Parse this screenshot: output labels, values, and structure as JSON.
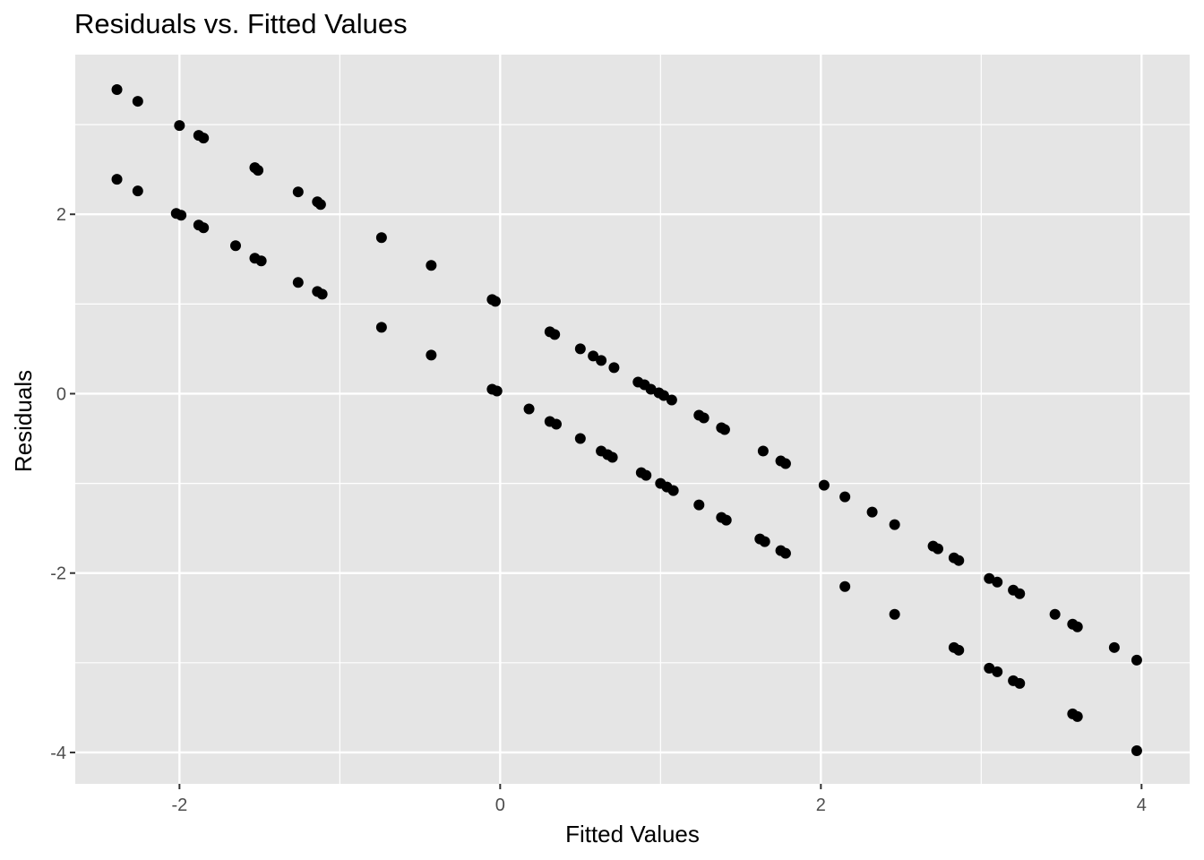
{
  "chart_data": {
    "type": "scatter",
    "title": "Residuals vs. Fitted Values",
    "xlabel": "Fitted Values",
    "ylabel": "Residuals",
    "xlim": [
      -2.65,
      4.3
    ],
    "ylim": [
      -4.35,
      3.78
    ],
    "x_ticks": [
      -2,
      0,
      2,
      4
    ],
    "x_tick_labels": [
      "-2",
      "0",
      "2",
      "4"
    ],
    "y_ticks": [
      -4,
      -2,
      0,
      2
    ],
    "y_tick_labels": [
      "-4",
      "-2",
      "0",
      "2"
    ],
    "grid": true,
    "background_color": "#e5e5e5",
    "grid_color": "#ffffff",
    "point_color": "#000000",
    "series": [
      {
        "x": [
          -2.39,
          -2.26,
          -2.0,
          -1.88,
          -1.85,
          -1.53,
          -1.51,
          -1.26,
          -1.14,
          -1.12,
          -0.74,
          -0.43,
          -0.05,
          -0.03,
          0.31,
          0.34,
          0.5,
          0.58,
          0.63,
          0.71,
          0.86,
          0.9,
          0.94,
          0.99,
          1.02,
          1.07,
          1.24,
          1.27,
          1.38,
          1.4,
          1.64,
          1.75,
          1.78,
          2.02,
          2.15,
          2.32,
          2.46,
          2.7,
          2.73,
          2.83,
          2.86,
          3.05,
          3.1,
          3.2,
          3.24,
          3.46,
          3.57,
          3.6,
          3.83,
          3.97
        ],
        "y": [
          3.39,
          3.26,
          2.99,
          2.88,
          2.85,
          2.52,
          2.49,
          2.25,
          2.14,
          2.11,
          1.74,
          1.43,
          1.05,
          1.03,
          0.69,
          0.66,
          0.5,
          0.42,
          0.37,
          0.29,
          0.13,
          0.1,
          0.05,
          0.01,
          -0.02,
          -0.07,
          -0.24,
          -0.27,
          -0.38,
          -0.4,
          -0.64,
          -0.75,
          -0.78,
          -1.02,
          -1.15,
          -1.32,
          -1.46,
          -1.7,
          -1.73,
          -1.83,
          -1.86,
          -2.06,
          -2.1,
          -2.19,
          -2.23,
          -2.46,
          -2.57,
          -2.6,
          -2.83,
          -2.97
        ]
      },
      {
        "x": [
          -2.39,
          -2.26,
          -2.02,
          -1.99,
          -1.88,
          -1.85,
          -1.65,
          -1.53,
          -1.49,
          -1.26,
          -1.14,
          -1.11,
          -0.74,
          -0.43,
          -0.05,
          -0.02,
          0.18,
          0.31,
          0.35,
          0.5,
          0.63,
          0.67,
          0.7,
          0.88,
          0.91,
          1.0,
          1.04,
          1.08,
          1.24,
          1.38,
          1.41,
          1.62,
          1.65,
          1.75,
          1.78,
          2.15,
          2.46,
          2.83,
          2.86,
          3.05,
          3.1,
          3.2,
          3.24,
          3.57,
          3.6,
          3.97
        ],
        "y": [
          2.39,
          2.26,
          2.01,
          1.99,
          1.88,
          1.85,
          1.65,
          1.51,
          1.48,
          1.24,
          1.14,
          1.11,
          0.74,
          0.43,
          0.05,
          0.03,
          -0.17,
          -0.31,
          -0.34,
          -0.5,
          -0.64,
          -0.68,
          -0.71,
          -0.88,
          -0.91,
          -1.0,
          -1.04,
          -1.08,
          -1.24,
          -1.38,
          -1.41,
          -1.62,
          -1.65,
          -1.75,
          -1.78,
          -2.15,
          -2.46,
          -2.83,
          -2.86,
          -3.06,
          -3.1,
          -3.2,
          -3.23,
          -3.57,
          -3.6,
          -3.98
        ]
      }
    ]
  }
}
